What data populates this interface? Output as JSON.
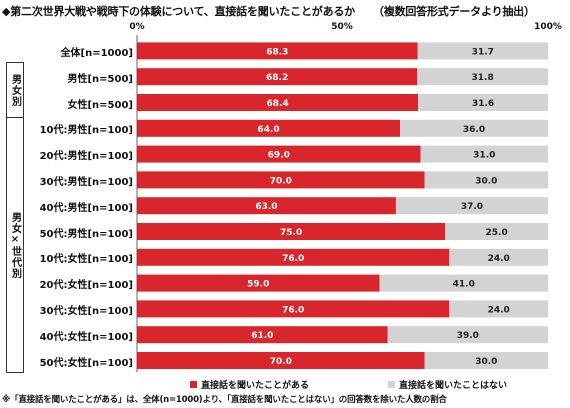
{
  "title": "◆第二次世界大戦や戦時下の体験について、直接話を聞いたことがあるか",
  "subtitle": "（複数回答形式データより抽出）",
  "groups": [
    {
      "label": "男女別"
    },
    {
      "label": "男女×世代別"
    }
  ],
  "legend": [
    {
      "label": "直接話を聞いたことがある",
      "color": "#d9262c"
    },
    {
      "label": "直接話を聞いたことはない",
      "color": "#d3d3d3"
    }
  ],
  "footnote": "※「直接話を聞いたことがある」は、全体(n=1000)より、「直接話を聞いたことはない」の回答数を除いた人数の割合",
  "chart_data": {
    "type": "bar",
    "orientation": "horizontal",
    "stacked": true,
    "xlim": [
      0,
      100
    ],
    "ticks": [
      "0%",
      "50%",
      "100%"
    ],
    "categories": [
      "全体[n=1000]",
      "男性[n=500]",
      "女性[n=500]",
      "10代:男性[n=100]",
      "20代:男性[n=100]",
      "30代:男性[n=100]",
      "40代:男性[n=100]",
      "50代:男性[n=100]",
      "10代:女性[n=100]",
      "20代:女性[n=100]",
      "30代:女性[n=100]",
      "40代:女性[n=100]",
      "50代:女性[n=100]"
    ],
    "series": [
      {
        "name": "直接話を聞いたことがある",
        "color": "#d9262c",
        "values": [
          68.3,
          68.2,
          68.4,
          64.0,
          69.0,
          70.0,
          63.0,
          75.0,
          76.0,
          59.0,
          76.0,
          61.0,
          70.0
        ],
        "labels": [
          "68.3",
          "68.2",
          "68.4",
          "64.0",
          "69.0",
          "70.0",
          "63.0",
          "75.0",
          "76.0",
          "59.0",
          "76.0",
          "61.0",
          "70.0"
        ]
      },
      {
        "name": "直接話を聞いたことはない",
        "color": "#d3d3d3",
        "values": [
          31.7,
          31.8,
          31.6,
          36.0,
          31.0,
          30.0,
          37.0,
          25.0,
          24.0,
          41.0,
          24.0,
          39.0,
          30.0
        ],
        "labels": [
          "31.7",
          "31.8",
          "31.6",
          "36.0",
          "31.0",
          "30.0",
          "37.0",
          "25.0",
          "24.0",
          "41.0",
          "24.0",
          "39.0",
          "30.0"
        ]
      }
    ]
  }
}
